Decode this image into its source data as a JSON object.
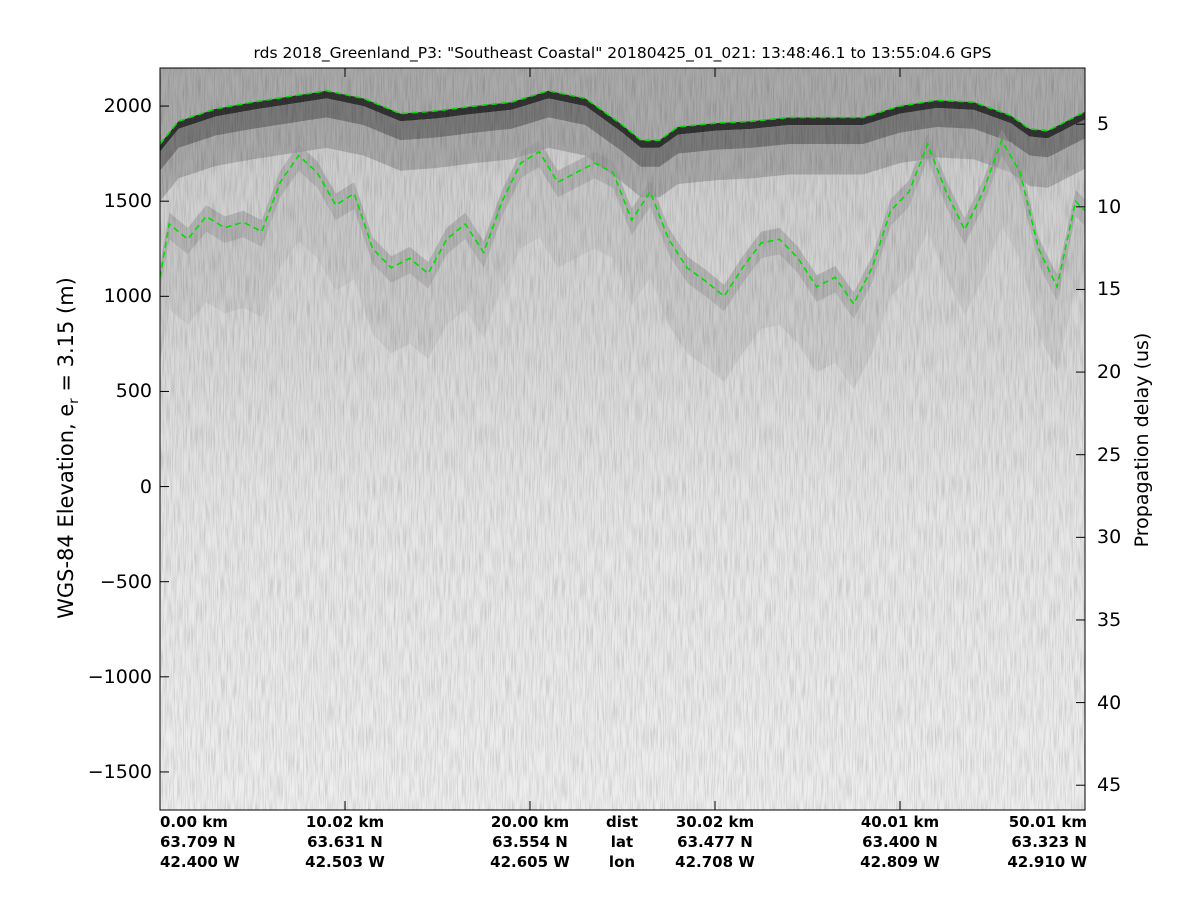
{
  "chart_data": {
    "type": "heatmap",
    "title": "rds 2018_Greenland_P3: \"Southeast Coastal\"  20180425_01_021: 13:48:46.1 to 13:55:04.6 GPS",
    "ylabel_left_main": "WGS-84 Elevation, e",
    "ylabel_left_sub": "r",
    "ylabel_left_tail": " = 3.15 (m)",
    "ylabel_right": "Propagation delay (us)",
    "ylim_left": [
      -1700,
      2200
    ],
    "ylim_right": [
      46.5,
      1.6
    ],
    "left_ticks": [
      "2000",
      "1500",
      "1000",
      "500",
      "0",
      "−500",
      "−1000",
      "−1500"
    ],
    "left_tick_values": [
      2000,
      1500,
      1000,
      500,
      0,
      -500,
      -1000,
      -1500
    ],
    "right_ticks": [
      "5",
      "10",
      "15",
      "20",
      "25",
      "30",
      "35",
      "40",
      "45"
    ],
    "right_tick_values": [
      5,
      10,
      15,
      20,
      25,
      30,
      35,
      40,
      45
    ],
    "grid": false,
    "colormap": "gray",
    "layer_color": "#00e000",
    "x_columns": [
      {
        "dist": "0.00 km",
        "lat": "63.709 N",
        "lon": "42.400 W",
        "frac": 0.0,
        "align": "left"
      },
      {
        "dist": "10.02 km",
        "lat": "63.631 N",
        "lon": "42.503 W",
        "frac": 0.2,
        "align": "center"
      },
      {
        "dist": "20.00 km",
        "lat": "63.554 N",
        "lon": "42.605 W",
        "frac": 0.4,
        "align": "center"
      },
      {
        "dist": "30.02 km",
        "lat": "63.477 N",
        "lon": "42.708 W",
        "frac": 0.6,
        "align": "center"
      },
      {
        "dist": "40.01 km",
        "lat": "63.400 N",
        "lon": "42.809 W",
        "frac": 0.8,
        "align": "center"
      },
      {
        "dist": "50.01 km",
        "lat": "63.323 N",
        "lon": "42.910 W",
        "frac": 1.0,
        "align": "right"
      }
    ],
    "row_names": [
      "dist",
      "lat",
      "lon"
    ],
    "x_range_km": [
      0,
      50.01
    ],
    "surface_layer": {
      "x_km": [
        0,
        1,
        3,
        5,
        7,
        9,
        11,
        13,
        15,
        17,
        19,
        21,
        23,
        25,
        26,
        27,
        28,
        30,
        32,
        34,
        36,
        38,
        40,
        42,
        44,
        46,
        47,
        48,
        50
      ],
      "elev_m": [
        1800,
        1920,
        1985,
        2020,
        2050,
        2080,
        2040,
        1960,
        1975,
        2000,
        2020,
        2080,
        2040,
        1900,
        1820,
        1820,
        1890,
        1910,
        1920,
        1940,
        1940,
        1940,
        2000,
        2030,
        2020,
        1950,
        1880,
        1870,
        1970
      ]
    },
    "bed_layer": {
      "x_km": [
        0,
        0.5,
        1.5,
        2.5,
        3.5,
        4.5,
        5.5,
        6.5,
        7.5,
        8.5,
        9.5,
        10.5,
        11.5,
        12.5,
        13.5,
        14.5,
        15.5,
        16.5,
        17.5,
        18.5,
        19.5,
        20.5,
        21.5,
        22.5,
        23.5,
        24.5,
        25.5,
        26.5,
        27.5,
        28.5,
        29.5,
        30.5,
        31.5,
        32.5,
        33.5,
        34.5,
        35.5,
        36.5,
        37.5,
        38.5,
        39.5,
        40.5,
        41.5,
        42.5,
        43.5,
        44.5,
        45.5,
        46.5,
        47.5,
        48.5,
        49.5,
        50
      ],
      "elev_m": [
        1100,
        1380,
        1300,
        1420,
        1360,
        1390,
        1340,
        1600,
        1740,
        1650,
        1480,
        1540,
        1250,
        1150,
        1200,
        1120,
        1300,
        1380,
        1230,
        1500,
        1700,
        1760,
        1600,
        1650,
        1700,
        1650,
        1400,
        1550,
        1300,
        1150,
        1080,
        1000,
        1150,
        1280,
        1300,
        1200,
        1050,
        1100,
        960,
        1150,
        1450,
        1550,
        1800,
        1550,
        1350,
        1550,
        1820,
        1650,
        1250,
        1050,
        1500,
        1450
      ]
    }
  }
}
